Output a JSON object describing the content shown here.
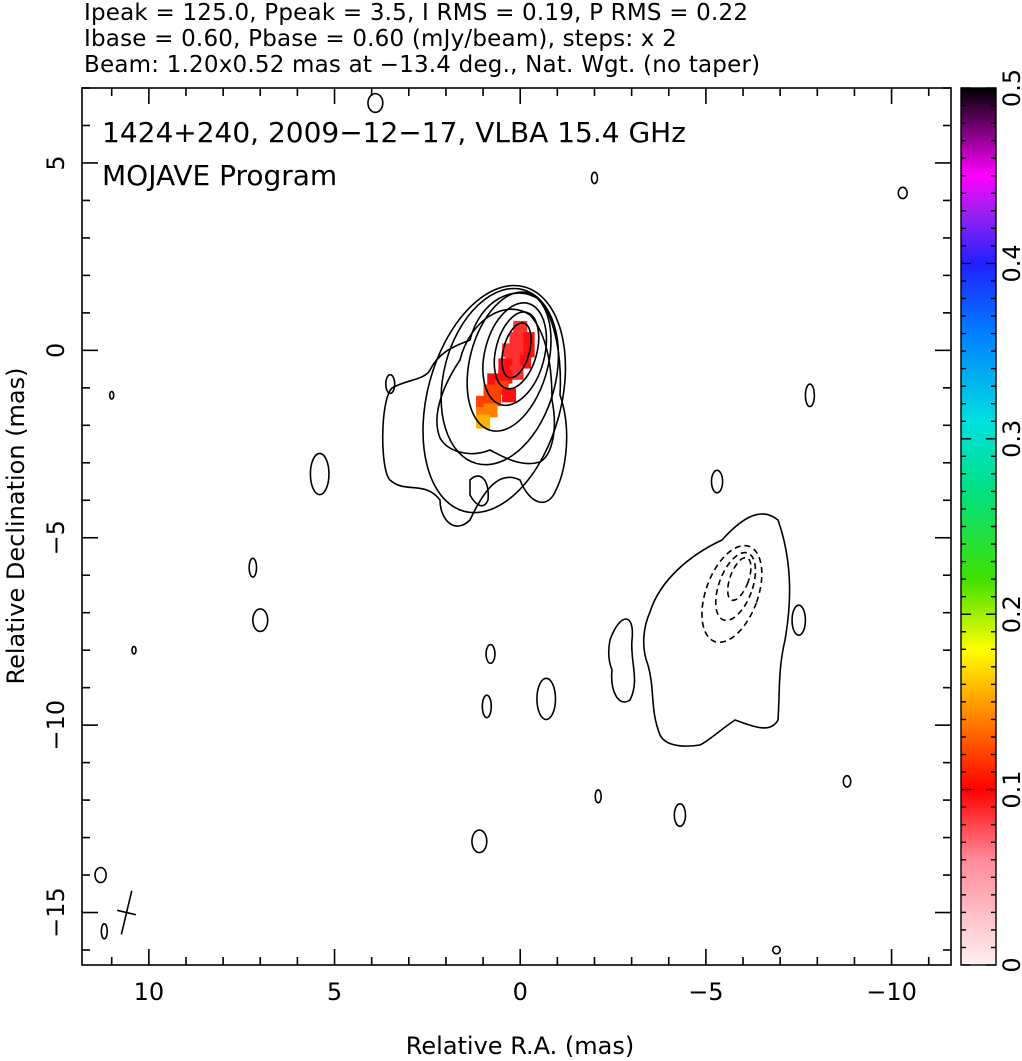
{
  "header": {
    "line1": "Ipeak = 125.0, Ppeak = 3.5, I RMS = 0.19, P RMS = 0.22",
    "line2": "Ibase = 0.60, Pbase = 0.60 (mJy/beam), steps: x 2",
    "line3": "Beam: 1.20x0.52 mas at −13.4 deg., Nat. Wgt. (no taper)"
  },
  "overlay": {
    "line1": "1424+240, 2009−12−17, VLBA 15.4 GHz",
    "line2": "MOJAVE Program"
  },
  "chart_data": {
    "type": "contour",
    "xlabel": "Relative R.A. (mas)",
    "ylabel": "Relative Declination (mas)",
    "xlim": [
      11.8,
      -11.6
    ],
    "ylim": [
      -16.4,
      7.0
    ],
    "x_ticks": [
      10,
      5,
      0,
      -5,
      -10
    ],
    "x_tick_labels": [
      "10",
      "5",
      "0",
      "−5",
      "−10"
    ],
    "y_ticks": [
      5,
      0,
      -5,
      -10,
      -15
    ],
    "y_tick_labels": [
      "5",
      "0",
      "−5",
      "−10",
      "−15"
    ],
    "colorbar": {
      "range": [
        0,
        0.5
      ],
      "ticks": [
        0,
        0.1,
        0.2,
        0.3,
        0.4,
        0.5
      ],
      "tick_labels": [
        "0",
        "0.1",
        "0.2",
        "0.3",
        "0.4",
        "0.5"
      ]
    },
    "core_contours": [
      {
        "cx": 0.1,
        "cy": 0.0,
        "rx": 0.35,
        "ry": 0.75
      },
      {
        "cx": 0.1,
        "cy": 0.0,
        "rx": 0.55,
        "ry": 1.05
      },
      {
        "cx": 0.15,
        "cy": -0.1,
        "rx": 0.8,
        "ry": 1.4
      },
      {
        "cx": 0.3,
        "cy": -0.3,
        "rx": 1.05,
        "ry": 1.9
      },
      {
        "cx": 0.55,
        "cy": -0.7,
        "rx": 1.5,
        "ry": 2.4
      },
      {
        "cx": 0.7,
        "cy": -1.3,
        "rx": 1.8,
        "ry": 3.1
      }
    ],
    "jet_contours": [
      {
        "cx": -5.9,
        "cy": -6.1,
        "rx": 0.25,
        "ry": 0.6
      },
      {
        "cx": -5.8,
        "cy": -6.3,
        "rx": 0.45,
        "ry": 0.95
      },
      {
        "cx": -5.7,
        "cy": -6.5,
        "rx": 0.7,
        "ry": 1.35
      }
    ],
    "small_contours": [
      {
        "cx": 3.5,
        "cy": -0.9,
        "rx": 0.12,
        "ry": 0.25
      },
      {
        "cx": 5.4,
        "cy": -3.3,
        "rx": 0.25,
        "ry": 0.55
      },
      {
        "cx": 7.2,
        "cy": -5.8,
        "rx": 0.1,
        "ry": 0.25
      },
      {
        "cx": 7.0,
        "cy": -7.2,
        "rx": 0.2,
        "ry": 0.3
      },
      {
        "cx": 1.1,
        "cy": -13.1,
        "rx": 0.2,
        "ry": 0.3
      },
      {
        "cx": -0.7,
        "cy": -9.3,
        "rx": 0.25,
        "ry": 0.55
      },
      {
        "cx": 0.8,
        "cy": -8.1,
        "rx": 0.12,
        "ry": 0.25
      },
      {
        "cx": 0.9,
        "cy": -9.5,
        "rx": 0.12,
        "ry": 0.3
      },
      {
        "cx": -5.3,
        "cy": -3.5,
        "rx": 0.15,
        "ry": 0.3
      },
      {
        "cx": -7.5,
        "cy": -7.2,
        "rx": 0.18,
        "ry": 0.4
      },
      {
        "cx": -7.8,
        "cy": -1.2,
        "rx": 0.12,
        "ry": 0.3
      },
      {
        "cx": -10.3,
        "cy": 4.2,
        "rx": 0.12,
        "ry": 0.15
      },
      {
        "cx": -2.0,
        "cy": 4.6,
        "rx": 0.08,
        "ry": 0.15
      },
      {
        "cx": -2.1,
        "cy": -11.9,
        "rx": 0.08,
        "ry": 0.17
      },
      {
        "cx": -4.3,
        "cy": -12.4,
        "rx": 0.15,
        "ry": 0.3
      },
      {
        "cx": 11.3,
        "cy": -14.0,
        "rx": 0.15,
        "ry": 0.2
      },
      {
        "cx": 11.2,
        "cy": -15.5,
        "rx": 0.08,
        "ry": 0.2
      },
      {
        "cx": 10.4,
        "cy": -8.0,
        "rx": 0.05,
        "ry": 0.1
      },
      {
        "cx": 11.0,
        "cy": -1.2,
        "rx": 0.05,
        "ry": 0.1
      },
      {
        "cx": 3.9,
        "cy": 6.6,
        "rx": 0.2,
        "ry": 0.25
      },
      {
        "cx": -8.8,
        "cy": -11.5,
        "rx": 0.1,
        "ry": 0.15
      },
      {
        "cx": -6.9,
        "cy": -16.0,
        "rx": 0.1,
        "ry": 0.1
      }
    ],
    "beam": {
      "cx": 10.6,
      "cy": -15.0,
      "major": 1.2,
      "minor": 0.52,
      "pa_deg": -13.4
    },
    "polarization_pixels": [
      {
        "x": 0.0,
        "y": 0.6,
        "v": 0.07
      },
      {
        "x": -0.2,
        "y": 0.3,
        "v": 0.08
      },
      {
        "x": 0.1,
        "y": 0.3,
        "v": 0.07
      },
      {
        "x": -0.2,
        "y": 0.0,
        "v": 0.08
      },
      {
        "x": 0.1,
        "y": 0.0,
        "v": 0.07
      },
      {
        "x": 0.3,
        "y": 0.0,
        "v": 0.06
      },
      {
        "x": -0.1,
        "y": -0.3,
        "v": 0.08
      },
      {
        "x": 0.2,
        "y": -0.3,
        "v": 0.07
      },
      {
        "x": 0.4,
        "y": -0.4,
        "v": 0.08
      },
      {
        "x": 0.1,
        "y": -0.6,
        "v": 0.07
      },
      {
        "x": 0.4,
        "y": -0.7,
        "v": 0.08
      },
      {
        "x": 0.7,
        "y": -0.8,
        "v": 0.08
      },
      {
        "x": 0.5,
        "y": -1.0,
        "v": 0.09
      },
      {
        "x": 0.8,
        "y": -1.1,
        "v": 0.09
      },
      {
        "x": 0.3,
        "y": -1.2,
        "v": 0.08
      },
      {
        "x": 0.7,
        "y": -1.3,
        "v": 0.09
      },
      {
        "x": 1.0,
        "y": -1.4,
        "v": 0.1
      },
      {
        "x": 0.8,
        "y": -1.6,
        "v": 0.11
      },
      {
        "x": 1.0,
        "y": -1.7,
        "v": 0.12
      },
      {
        "x": 1.0,
        "y": -1.9,
        "v": 0.14
      }
    ]
  }
}
